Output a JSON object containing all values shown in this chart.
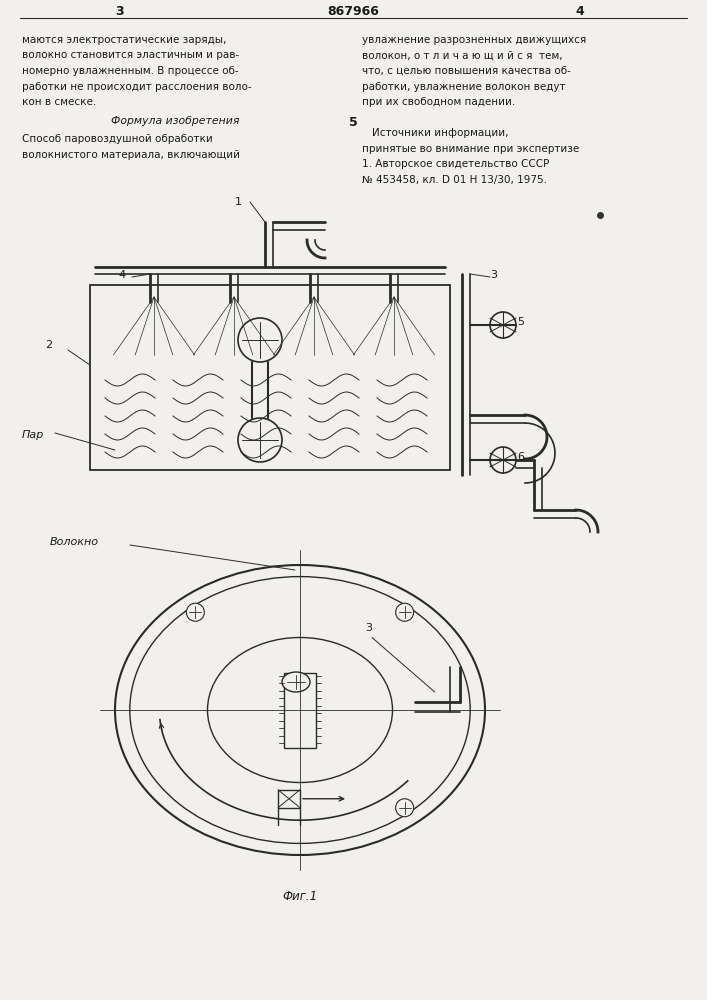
{
  "page_color": "#f2f0ec",
  "text_color": "#1a1a1a",
  "line_color": "#2a2a2a",
  "title_number": "867966",
  "page_left": "3",
  "page_right": "4",
  "col1_texts": [
    "маются электростатические заряды,",
    "волокно становится эластичным и рав-",
    "номерно увлажненным. В процессе об-",
    "работки не происходит расслоения воло-",
    "кон в смеске."
  ],
  "formula_title": "Формула изобретения",
  "formula_text": [
    "Способ паровоздушной обработки",
    "волокнистого материала, включающий"
  ],
  "col2_texts": [
    "увлажнение разрозненных движущихся",
    "волокон, о т л и ч а ю щ и й с я  тем,",
    "что, с целью повышения качества об-",
    "работки, увлажнение волокон ведут",
    "при их свободном падении."
  ],
  "sources_title": "Источники информации,",
  "sources_text": [
    "принятые во внимание при экспертизе",
    "1. Авторское свидетельство СССР",
    "№ 453458, кл. D 01 H 13/30, 1975."
  ],
  "section_number": "5",
  "fig_label": "Фиг.1"
}
